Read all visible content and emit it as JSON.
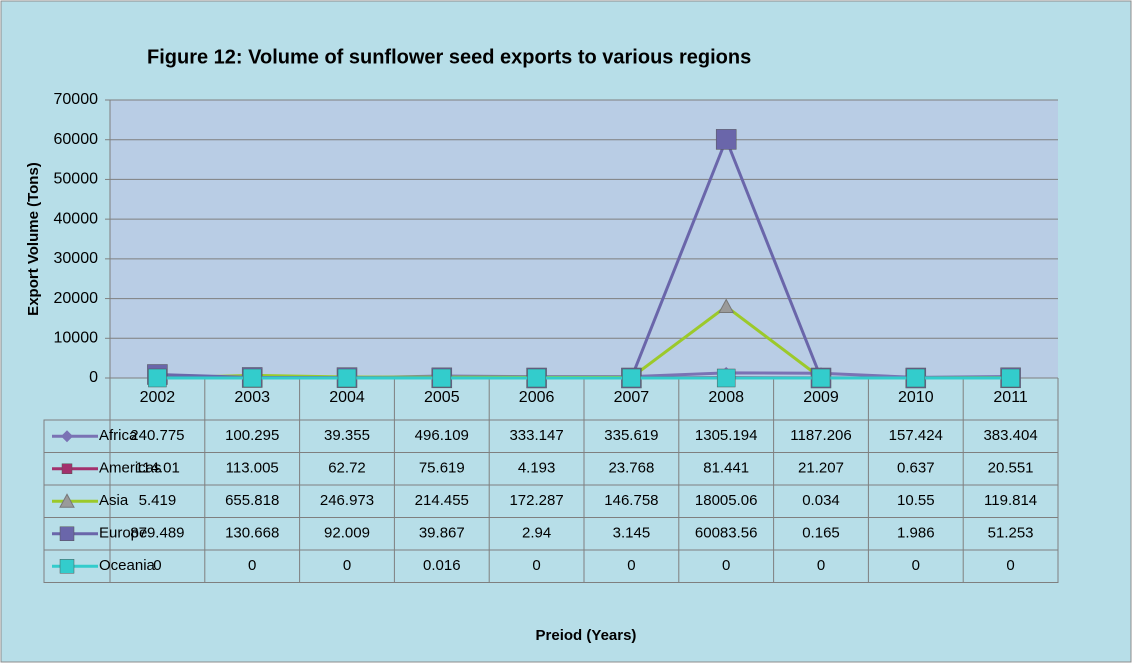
{
  "chart_data": {
    "type": "line",
    "title": "Figure 12: Volume of sunflower seed exports to various regions",
    "y_label": "Export Volume (Tons)",
    "x_label": "Preiod (Years)",
    "categories": [
      "2002",
      "2003",
      "2004",
      "2005",
      "2006",
      "2007",
      "2008",
      "2009",
      "2010",
      "2011"
    ],
    "series": [
      {
        "name": "Africa",
        "color": "#7a72b4",
        "marker": "diamond",
        "values": [
          240.775,
          100.295,
          39.355,
          496.109,
          333.147,
          335.619,
          1305.194,
          1187.206,
          157.424,
          383.404
        ]
      },
      {
        "name": "Americas",
        "color": "#a3306c",
        "marker": "square",
        "values": [
          114.01,
          113.005,
          62.72,
          75.619,
          4.193,
          23.768,
          81.441,
          21.207,
          0.637,
          20.551
        ]
      },
      {
        "name": "Asia",
        "color": "#9cc92a",
        "marker": "triangle",
        "values": [
          5.419,
          655.818,
          246.973,
          214.455,
          172.287,
          146.758,
          18005.06,
          0.034,
          10.55,
          119.814
        ]
      },
      {
        "name": "Europe",
        "color": "#6a66aa",
        "marker": "square",
        "values": [
          879.489,
          130.668,
          92.009,
          39.867,
          2.94,
          3.145,
          60083.56,
          0.165,
          1.986,
          51.253
        ]
      },
      {
        "name": "Oceania",
        "color": "#33cccc",
        "marker": "square",
        "values": [
          0,
          0,
          0,
          0.016,
          0,
          0,
          0,
          0,
          0,
          0
        ]
      }
    ],
    "ylim": [
      0,
      70000
    ],
    "yticks": [
      0,
      10000,
      20000,
      30000,
      40000,
      50000,
      60000,
      70000
    ],
    "grid": true
  }
}
